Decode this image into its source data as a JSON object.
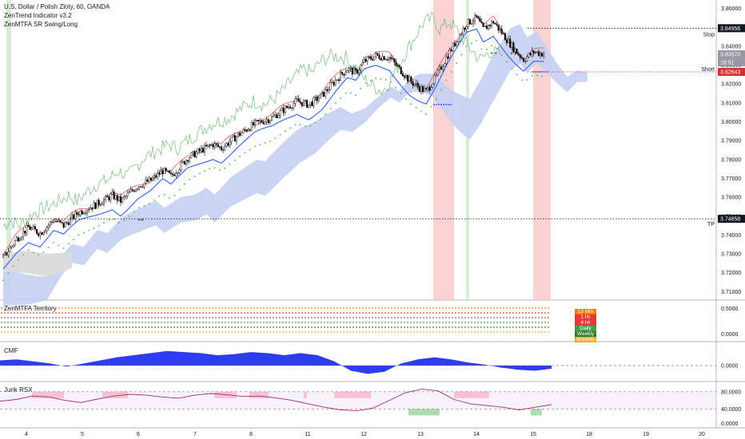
{
  "header": {
    "symbol_line": "U.S. Dollar / Polish Zloty, 60, OANDA",
    "indicator_1": "ZenTrend Indicator v3.2",
    "indicator_2": "ZenMTFA SR Swing/Long"
  },
  "panes": {
    "territory": "ZenMTFA Territory",
    "cmf": "CMF",
    "rsx": "Jurik RSX"
  },
  "price_axis": {
    "ticks": [
      "3.86000",
      "3.85000",
      "3.84000",
      "3.83000",
      "3.82000",
      "3.81000",
      "3.80000",
      "3.79000",
      "3.78000",
      "3.77000",
      "3.76000",
      "3.75000",
      "3.74000",
      "3.73000",
      "3.72000",
      "3.71000"
    ]
  },
  "price_tags": {
    "stop_value": "3.84956",
    "current_value": "3.83570",
    "countdown": "18:51",
    "short_value": "3.82643",
    "tp_value": "3.74858",
    "stop_text": "Stop",
    "short_text": "Short",
    "tp_text": "TP"
  },
  "territory_axis": [
    "0.5000",
    "0.0000"
  ],
  "cmf_axis": [
    "0.0000"
  ],
  "rsx_axis": [
    "80.0000",
    "40.0000",
    "0.0000"
  ],
  "timeframes": [
    "15 Min",
    "1 Hr",
    "4 Hr",
    "Daily",
    "Weekly",
    "Monthly"
  ],
  "time_axis": [
    "4",
    "5",
    "6",
    "7",
    "8",
    "11",
    "12",
    "13",
    "14",
    "15",
    "18",
    "19",
    "20"
  ],
  "colors": {
    "bull": "#ffffff",
    "bear": "#000000",
    "cloud": "#c5cff2",
    "cloud_grey": "#dcdcdc",
    "base": "#2962ff",
    "conv": "#ef5350",
    "lag": "#4caf50",
    "dots": "#4caf50",
    "short_zone": "#f8c7c9",
    "long_zone": "#c8e6c9",
    "cmf": "#2e3cf0",
    "rsx": "#a0306a"
  },
  "chart_data": {
    "type": "candlestick",
    "title": "U.S. Dollar / Polish Zloty, 60, OANDA",
    "ylim": [
      3.7055,
      3.8645
    ],
    "levels": {
      "stop": 3.84956,
      "current": 3.8357,
      "short": 3.82643,
      "tp": 3.74858
    },
    "close_path": [
      [
        0,
        3.728
      ],
      [
        8,
        3.738
      ],
      [
        15,
        3.744
      ],
      [
        22,
        3.741
      ],
      [
        30,
        3.748
      ],
      [
        36,
        3.745
      ],
      [
        45,
        3.752
      ],
      [
        55,
        3.756
      ],
      [
        65,
        3.761
      ],
      [
        70,
        3.758
      ],
      [
        80,
        3.766
      ],
      [
        88,
        3.769
      ],
      [
        95,
        3.774
      ],
      [
        100,
        3.771
      ],
      [
        110,
        3.781
      ],
      [
        118,
        3.785
      ],
      [
        125,
        3.788
      ],
      [
        130,
        3.786
      ],
      [
        140,
        3.793
      ],
      [
        150,
        3.799
      ],
      [
        160,
        3.802
      ],
      [
        168,
        3.807
      ],
      [
        175,
        3.811
      ],
      [
        182,
        3.809
      ],
      [
        190,
        3.814
      ],
      [
        198,
        3.822
      ],
      [
        205,
        3.828
      ],
      [
        210,
        3.826
      ],
      [
        215,
        3.832
      ],
      [
        222,
        3.835
      ],
      [
        230,
        3.834
      ],
      [
        236,
        3.828
      ],
      [
        242,
        3.822
      ],
      [
        248,
        3.818
      ],
      [
        252,
        3.816
      ],
      [
        258,
        3.824
      ],
      [
        264,
        3.834
      ],
      [
        270,
        3.843
      ],
      [
        276,
        3.852
      ],
      [
        282,
        3.855
      ],
      [
        286,
        3.849
      ],
      [
        292,
        3.853
      ],
      [
        298,
        3.846
      ],
      [
        304,
        3.839
      ],
      [
        310,
        3.833
      ],
      [
        316,
        3.837
      ],
      [
        322,
        3.836
      ]
    ],
    "rsx_values": [
      58,
      62,
      70,
      68,
      60,
      55,
      63,
      70,
      74,
      72,
      68,
      65,
      72,
      76,
      73,
      69,
      70,
      66,
      60,
      52,
      44,
      38,
      36,
      42,
      60,
      78,
      86,
      82,
      62,
      52,
      48,
      44,
      38,
      44,
      50
    ],
    "cmf_values": [
      0.05,
      0.06,
      0.04,
      0.02,
      -0.01,
      0.02,
      0.05,
      0.08,
      0.1,
      0.12,
      0.14,
      0.13,
      0.12,
      0.1,
      0.11,
      0.13,
      0.12,
      0.1,
      0.12,
      0.1,
      0.04,
      -0.05,
      -0.08,
      -0.06,
      0.02,
      0.06,
      0.08,
      0.06,
      0.03,
      0.01,
      -0.02,
      -0.04,
      -0.05,
      -0.03
    ]
  }
}
